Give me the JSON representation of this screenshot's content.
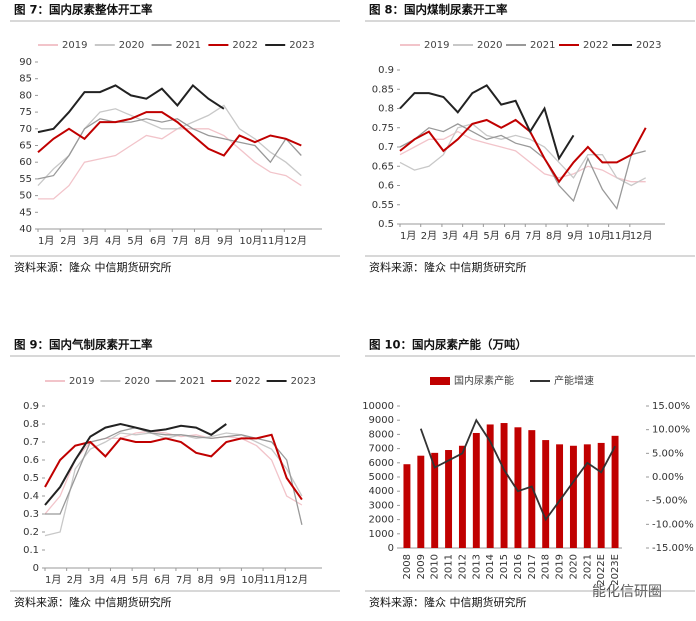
{
  "chart_data": [
    {
      "type": "line",
      "title": "图 7：国内尿素整体开工率",
      "source": "资料来源：隆众  中信期货研究所",
      "x": [
        1,
        4,
        7,
        10,
        13,
        16,
        19,
        22,
        25,
        28,
        31,
        34,
        37,
        40,
        43,
        46,
        49,
        52
      ],
      "xlim": [
        1,
        56
      ],
      "xticks": [
        {
          "value": 1,
          "label": "1月"
        },
        {
          "value": 5.3,
          "label": "2月"
        },
        {
          "value": 9.7,
          "label": "3月"
        },
        {
          "value": 14,
          "label": "4月"
        },
        {
          "value": 18.3,
          "label": "5月"
        },
        {
          "value": 22.7,
          "label": "6月"
        },
        {
          "value": 27,
          "label": "7月"
        },
        {
          "value": 31.3,
          "label": "8月"
        },
        {
          "value": 35.7,
          "label": "9月"
        },
        {
          "value": 40,
          "label": "10月"
        },
        {
          "value": 44.3,
          "label": "11月"
        },
        {
          "value": 48.7,
          "label": "12月"
        }
      ],
      "ylim": [
        40,
        90
      ],
      "yticks": [
        40,
        45,
        50,
        55,
        60,
        65,
        70,
        75,
        80,
        85,
        90
      ],
      "series": [
        {
          "name": "2019",
          "color": "#f2c4ca",
          "values": [
            49,
            49,
            53,
            60,
            61,
            62,
            65,
            68,
            67,
            70,
            70,
            70,
            68,
            64,
            60,
            57,
            56,
            53
          ]
        },
        {
          "name": "2020",
          "color": "#c8c8c8",
          "values": [
            53,
            58,
            62,
            70,
            75,
            76,
            74,
            72,
            70,
            70,
            72,
            74,
            77,
            70,
            67,
            63,
            60,
            56
          ]
        },
        {
          "name": "2021",
          "color": "#999999",
          "values": [
            55,
            56,
            62,
            70,
            73,
            72,
            72,
            73,
            72,
            73,
            70,
            68,
            67,
            66,
            65,
            60,
            67,
            62
          ]
        },
        {
          "name": "2022",
          "color": "#c00000",
          "values": [
            63,
            67,
            70,
            67,
            72,
            72,
            73,
            75,
            75,
            72,
            68,
            64,
            62,
            68,
            66,
            68,
            67,
            65
          ]
        },
        {
          "name": "2023",
          "color": "#222222",
          "values": [
            69,
            70,
            75,
            81,
            81,
            83,
            80,
            79,
            82,
            77,
            83,
            79,
            76,
            null,
            null,
            null,
            null,
            null
          ]
        }
      ]
    },
    {
      "type": "line",
      "title": "图 8：国内煤制尿素开工率",
      "source": "资料来源：隆众  中信期货研究所",
      "x": [
        1,
        4,
        7,
        10,
        13,
        16,
        19,
        22,
        25,
        28,
        31,
        34,
        37,
        40,
        43,
        46,
        49,
        52
      ],
      "xlim": [
        1,
        56
      ],
      "xticks": [
        {
          "value": 1,
          "label": "1月"
        },
        {
          "value": 5.3,
          "label": "2月"
        },
        {
          "value": 9.7,
          "label": "3月"
        },
        {
          "value": 14,
          "label": "4月"
        },
        {
          "value": 18.3,
          "label": "5月"
        },
        {
          "value": 22.7,
          "label": "6月"
        },
        {
          "value": 27,
          "label": "7月"
        },
        {
          "value": 31.3,
          "label": "8月"
        },
        {
          "value": 35.7,
          "label": "9月"
        },
        {
          "value": 40,
          "label": "10月"
        },
        {
          "value": 44.3,
          "label": "11月"
        },
        {
          "value": 48.7,
          "label": "12月"
        }
      ],
      "ylim": [
        0.5,
        0.9
      ],
      "yticks": [
        0.5,
        0.55,
        0.6,
        0.65,
        0.7,
        0.75,
        0.8,
        0.85,
        0.9
      ],
      "series": [
        {
          "name": "2019",
          "color": "#f2c4ca",
          "values": [
            0.68,
            0.7,
            0.72,
            0.72,
            0.74,
            0.72,
            0.71,
            0.7,
            0.69,
            0.66,
            0.63,
            0.62,
            0.63,
            0.65,
            0.64,
            0.62,
            0.61,
            0.61
          ]
        },
        {
          "name": "2020",
          "color": "#c8c8c8",
          "values": [
            0.66,
            0.64,
            0.65,
            0.68,
            0.75,
            0.76,
            0.73,
            0.72,
            0.73,
            0.72,
            0.7,
            0.66,
            0.62,
            0.68,
            0.68,
            0.62,
            0.6,
            0.62
          ]
        },
        {
          "name": "2021",
          "color": "#999999",
          "values": [
            0.7,
            0.72,
            0.75,
            0.74,
            0.76,
            0.74,
            0.72,
            0.73,
            0.71,
            0.7,
            0.67,
            0.6,
            0.56,
            0.67,
            0.59,
            0.54,
            0.68,
            0.69
          ]
        },
        {
          "name": "2022",
          "color": "#c00000",
          "values": [
            0.69,
            0.72,
            0.74,
            0.69,
            0.72,
            0.76,
            0.77,
            0.75,
            0.77,
            0.74,
            0.67,
            0.61,
            0.66,
            0.7,
            0.66,
            0.66,
            0.68,
            0.75
          ]
        },
        {
          "name": "2023",
          "color": "#222222",
          "values": [
            0.8,
            0.84,
            0.84,
            0.83,
            0.79,
            0.84,
            0.86,
            0.81,
            0.82,
            0.74,
            0.8,
            0.67,
            0.73,
            null,
            null,
            null,
            null,
            null
          ]
        }
      ]
    },
    {
      "type": "line",
      "title": "图 9：国内气制尿素开工率",
      "source": "资料来源：隆众  中信期货研究所",
      "x": [
        1,
        4,
        7,
        10,
        13,
        16,
        19,
        22,
        25,
        28,
        31,
        34,
        37,
        40,
        43,
        46,
        49,
        52
      ],
      "xlim": [
        1,
        56
      ],
      "xticks": [
        {
          "value": 1,
          "label": "1月"
        },
        {
          "value": 5.3,
          "label": "2月"
        },
        {
          "value": 9.7,
          "label": "3月"
        },
        {
          "value": 14,
          "label": "4月"
        },
        {
          "value": 18.3,
          "label": "5月"
        },
        {
          "value": 22.7,
          "label": "6月"
        },
        {
          "value": 27,
          "label": "7月"
        },
        {
          "value": 31.3,
          "label": "8月"
        },
        {
          "value": 35.7,
          "label": "9月"
        },
        {
          "value": 40,
          "label": "10月"
        },
        {
          "value": 44.3,
          "label": "11月"
        },
        {
          "value": 48.7,
          "label": "12月"
        }
      ],
      "ylim": [
        0,
        0.9
      ],
      "yticks": [
        0,
        0.1,
        0.2,
        0.3,
        0.4,
        0.5,
        0.6,
        0.7,
        0.8,
        0.9
      ],
      "series": [
        {
          "name": "2019",
          "color": "#f2c4ca",
          "values": [
            0.3,
            0.4,
            0.6,
            0.7,
            0.72,
            0.72,
            0.75,
            0.76,
            0.75,
            0.73,
            0.74,
            0.72,
            0.73,
            0.72,
            0.68,
            0.6,
            0.4,
            0.35
          ]
        },
        {
          "name": "2020",
          "color": "#c8c8c8",
          "values": [
            0.18,
            0.2,
            0.55,
            0.66,
            0.7,
            0.75,
            0.74,
            0.75,
            0.72,
            0.74,
            0.72,
            0.73,
            0.75,
            0.74,
            0.7,
            0.66,
            0.55,
            0.4
          ]
        },
        {
          "name": "2021",
          "color": "#999999",
          "values": [
            0.3,
            0.3,
            0.5,
            0.7,
            0.72,
            0.76,
            0.78,
            0.75,
            0.74,
            0.74,
            0.73,
            0.72,
            0.73,
            0.74,
            0.72,
            0.7,
            0.6,
            0.24
          ]
        },
        {
          "name": "2022",
          "color": "#c00000",
          "values": [
            0.45,
            0.6,
            0.68,
            0.7,
            0.62,
            0.72,
            0.7,
            0.7,
            0.72,
            0.7,
            0.64,
            0.62,
            0.7,
            0.72,
            0.72,
            0.74,
            0.5,
            0.38
          ]
        },
        {
          "name": "2023",
          "color": "#222222",
          "values": [
            0.35,
            0.45,
            0.6,
            0.73,
            0.78,
            0.8,
            0.78,
            0.76,
            0.77,
            0.79,
            0.78,
            0.74,
            0.8,
            null,
            null,
            null,
            null,
            null
          ]
        }
      ]
    },
    {
      "type": "bar",
      "title": "图 10：国内尿素产能（万吨）",
      "source": "资料来源：隆众  中信期货研究所",
      "categories": [
        "2008",
        "2009",
        "2010",
        "2011",
        "2012",
        "2013",
        "2014",
        "2015",
        "2016",
        "2017",
        "2018",
        "2019",
        "2020",
        "2021",
        "2022E",
        "2023E"
      ],
      "ylim": [
        0,
        10000
      ],
      "yticks": [
        0,
        1000,
        2000,
        3000,
        4000,
        5000,
        6000,
        7000,
        8000,
        9000,
        10000
      ],
      "y2lim": [
        -15,
        15
      ],
      "y2ticks": [
        {
          "value": -15,
          "label": "-15.00%"
        },
        {
          "value": -10,
          "label": "-10.00%"
        },
        {
          "value": -5,
          "label": "-5.00%"
        },
        {
          "value": 0,
          "label": "0.00%"
        },
        {
          "value": 5,
          "label": "5.00%"
        },
        {
          "value": 10,
          "label": "10.00%"
        },
        {
          "value": 15,
          "label": "15.00%"
        }
      ],
      "series": [
        {
          "name": "国内尿素产能",
          "color": "#c00000",
          "values": [
            5900,
            6500,
            6700,
            6900,
            7200,
            8100,
            8700,
            8800,
            8500,
            8300,
            7600,
            7300,
            7200,
            7300,
            7400,
            7900
          ]
        },
        {
          "name": "产能增速",
          "color": "#333333",
          "axis": "y2",
          "values": [
            null,
            10.2,
            2.0,
            3.5,
            5.0,
            12.0,
            7.5,
            1.5,
            -3.0,
            -2.0,
            -9.0,
            -5.0,
            -1.0,
            3.0,
            1.0,
            6.5
          ]
        }
      ]
    }
  ],
  "watermark": "能化信研圈"
}
